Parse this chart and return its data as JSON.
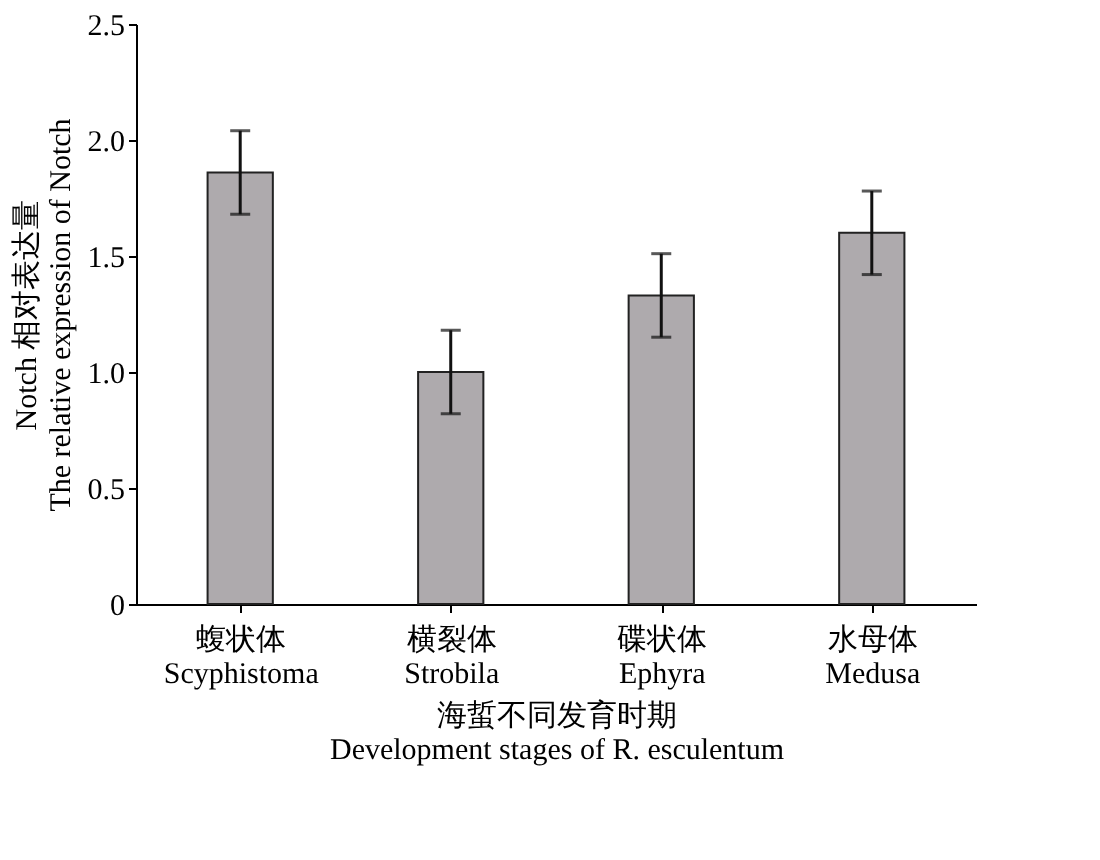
{
  "chart_data": {
    "type": "bar",
    "categories": [
      "蝮状体\nScyphistoma",
      "横裂体\nStrobila",
      "碟状体\nEphyra",
      "水母体\nMedusa"
    ],
    "values": [
      1.86,
      1.0,
      1.33,
      1.6
    ],
    "errors": [
      0.18,
      0.18,
      0.18,
      0.18
    ],
    "color": "#aeaaad",
    "xlabel": "海蜇不同发育时期\nDevelopment stages of R. esculentum",
    "ylabel": "Notch 相对表达量\nThe relative expression of Notch",
    "ylim": [
      0,
      2.5
    ],
    "yticks": [
      0,
      {
        "value": 0.5,
        "label": "0.5"
      },
      {
        "value": 1,
        "label": "1.0"
      },
      {
        "value": 1.5,
        "label": "1.5"
      },
      {
        "value": 2,
        "label": "2.0"
      },
      {
        "value": 2.5,
        "label": "2.5"
      }
    ],
    "grid": false
  }
}
